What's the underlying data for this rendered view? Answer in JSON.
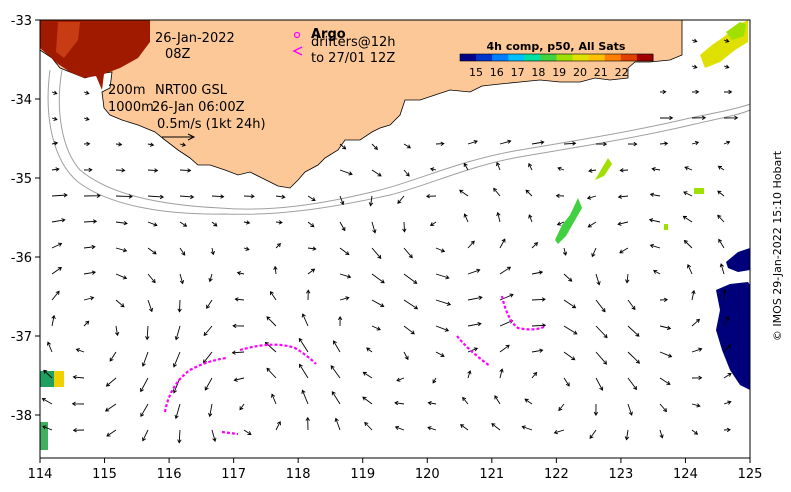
{
  "map": {
    "date_line1": "26-Jan-2022",
    "date_line2": "08Z",
    "argo_label": "Argo",
    "drifters_label": "drifters@12h",
    "drifters_to": "to 27/01 12Z",
    "isobath_200": "200m",
    "isobath_1000": "1000m",
    "product": "NRT00 GSL",
    "product_time": "26-Jan 06:00Z",
    "scale_arrow": "0.5m/s (1kt 24h)",
    "credit": "© IMOS 29-Jan-2022 15:10 Hobart",
    "lon_ticks": [
      "114",
      "115",
      "116",
      "117",
      "118",
      "119",
      "120",
      "121",
      "122",
      "123",
      "124",
      "125"
    ],
    "lat_ticks": [
      "-33",
      "-34",
      "-35",
      "-36",
      "-37",
      "-38"
    ]
  },
  "colorbar": {
    "title": "4h comp, p50, All Sats",
    "labels": [
      "15",
      "16",
      "17",
      "18",
      "19",
      "20",
      "21",
      "22"
    ],
    "colors": [
      "#00008b",
      "#0033cc",
      "#0080ff",
      "#00c0ff",
      "#00e0a0",
      "#40d040",
      "#a0e000",
      "#e0e000",
      "#ffc000",
      "#ff8000",
      "#e04000",
      "#a00000"
    ]
  },
  "colors": {
    "land": "#fdc898",
    "drifter": "#ff00ff",
    "isobath": "#a0a0a0"
  }
}
